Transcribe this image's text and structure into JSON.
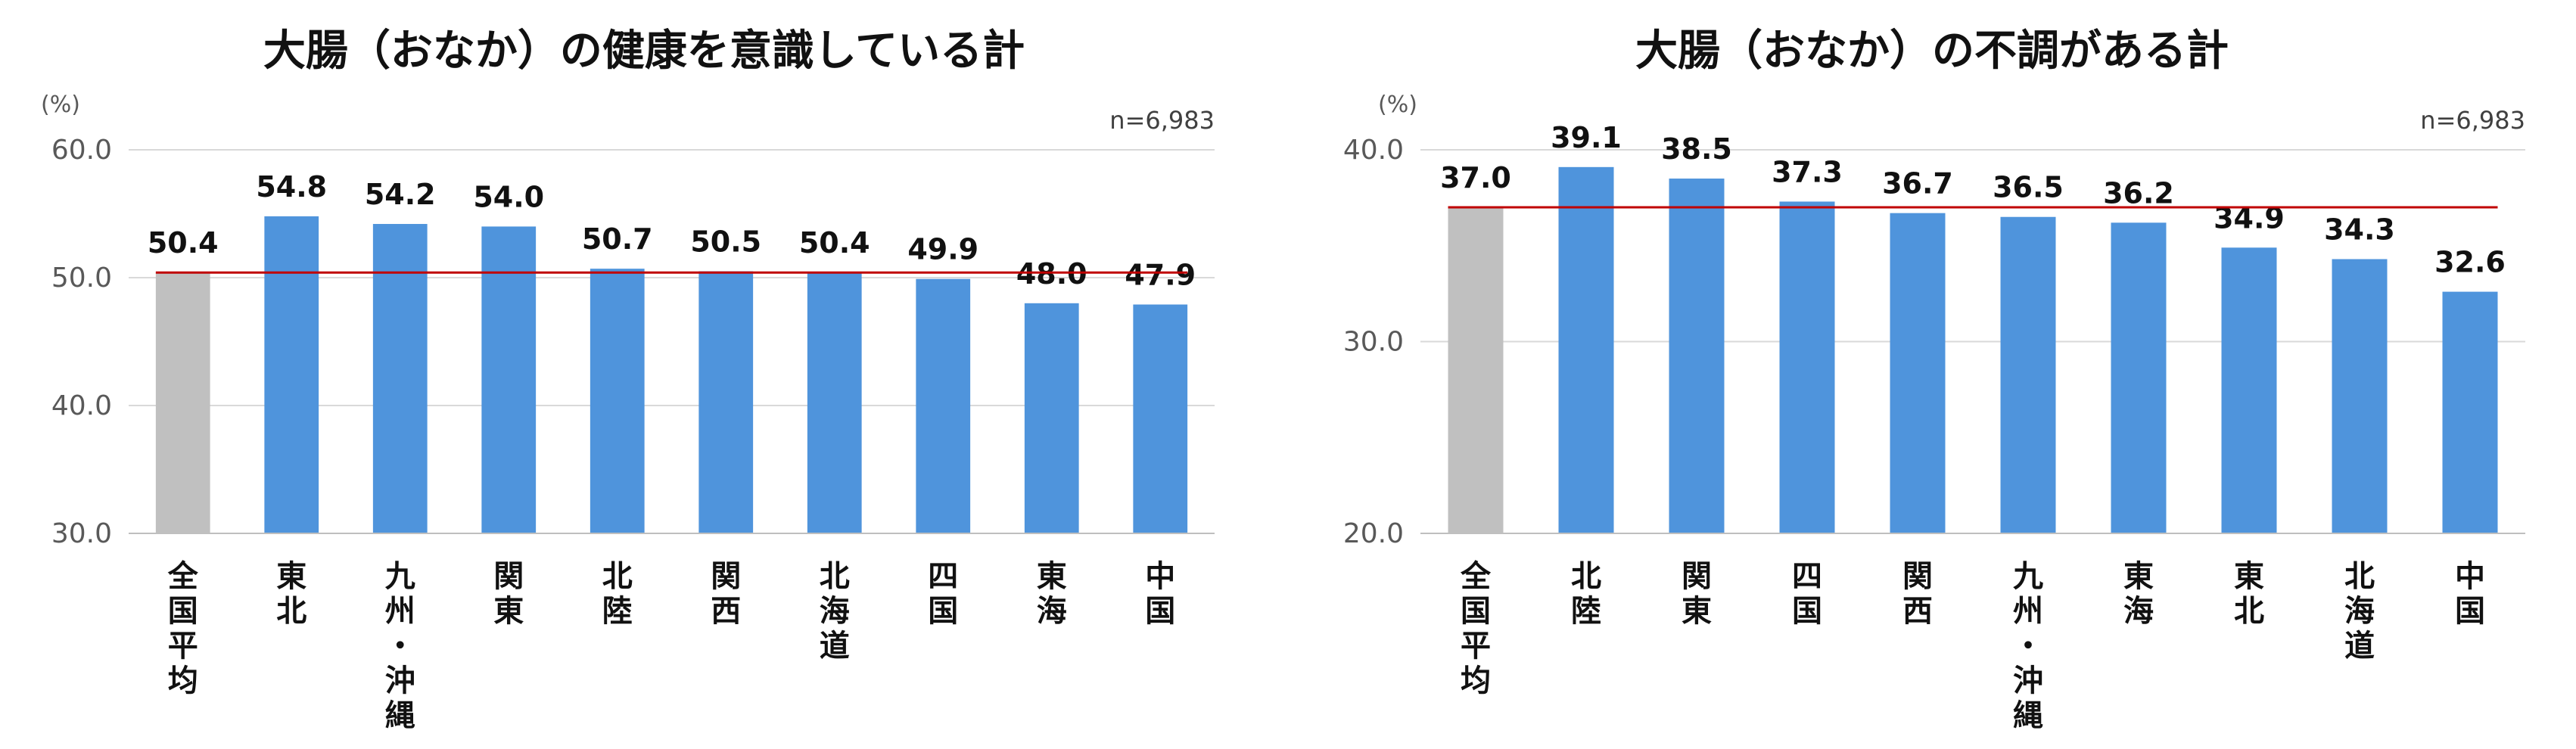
{
  "chart_data": [
    {
      "type": "bar",
      "title": "大腸（おなか）の健康を意識している計",
      "unit": "(%)",
      "n_label": "n=6,983",
      "categories": [
        "全国平均",
        "東北",
        "九州・沖縄",
        "関東",
        "北陸",
        "関西",
        "北海道",
        "四国",
        "東海",
        "中国"
      ],
      "values": [
        50.4,
        54.8,
        54.2,
        54.0,
        50.7,
        50.5,
        50.4,
        49.9,
        48.0,
        47.9
      ],
      "value_labels": [
        "50.4",
        "54.8",
        "54.2",
        "54.0",
        "50.7",
        "50.5",
        "50.4",
        "49.9",
        "48.0",
        "47.9"
      ],
      "highlight_index": 0,
      "reference_line": 50.4,
      "ylim": [
        30,
        60
      ],
      "yticks": [
        30,
        40,
        50,
        60
      ],
      "ytick_labels": [
        "30.0",
        "40.0",
        "50.0",
        "60.0"
      ],
      "grid": true,
      "colors": {
        "bar": "#4f94dc",
        "highlight": "#c0c0c0",
        "line": "#c00000",
        "grid": "#d9d9d9"
      }
    },
    {
      "type": "bar",
      "title": "大腸（おなか）の不調がある計",
      "unit": "(%)",
      "n_label": "n=6,983",
      "categories": [
        "全国平均",
        "北陸",
        "関東",
        "四国",
        "関西",
        "九州・沖縄",
        "東海",
        "東北",
        "北海道",
        "中国"
      ],
      "values": [
        37.0,
        39.1,
        38.5,
        37.3,
        36.7,
        36.5,
        36.2,
        34.9,
        34.3,
        32.6
      ],
      "value_labels": [
        "37.0",
        "39.1",
        "38.5",
        "37.3",
        "36.7",
        "36.5",
        "36.2",
        "34.9",
        "34.3",
        "32.6"
      ],
      "highlight_index": 0,
      "reference_line": 37.0,
      "ylim": [
        20,
        40
      ],
      "yticks": [
        20,
        30,
        40
      ],
      "ytick_labels": [
        "20.0",
        "30.0",
        "40.0"
      ],
      "grid": true,
      "colors": {
        "bar": "#4f94dc",
        "highlight": "#c0c0c0",
        "line": "#c00000",
        "grid": "#d9d9d9"
      }
    }
  ]
}
